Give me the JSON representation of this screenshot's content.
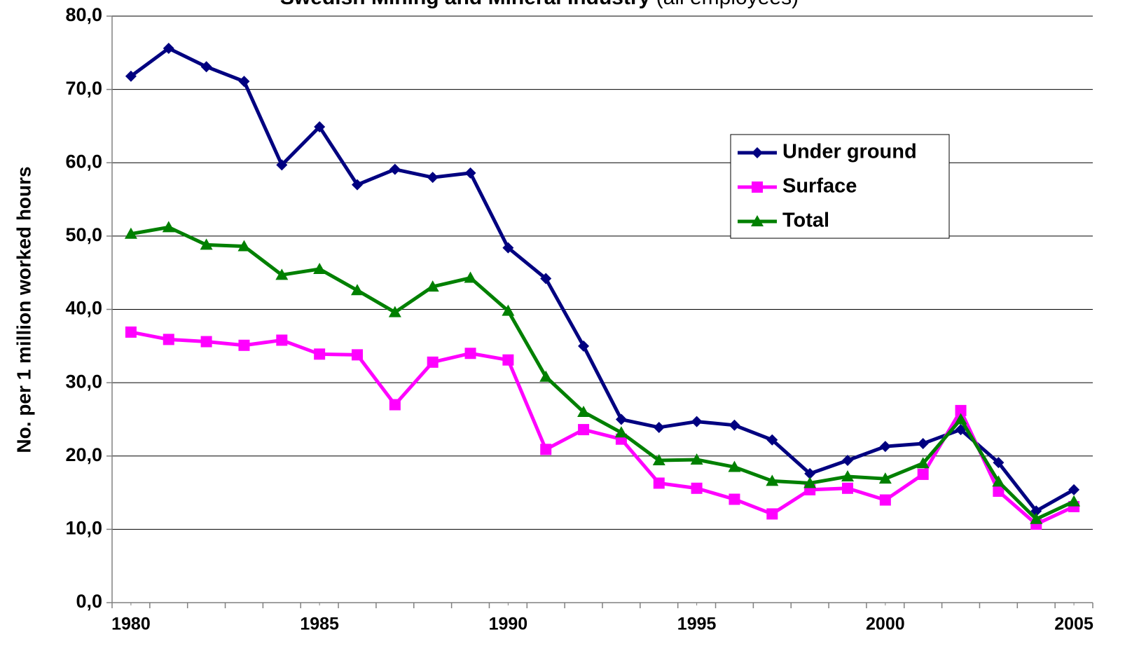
{
  "chart_data": {
    "type": "line",
    "title": "Swedish Mining and Mineral Industry",
    "subtitle": "(all employees)",
    "y_label": "No. per 1 million worked hours",
    "x": [
      1980,
      1981,
      1982,
      1983,
      1984,
      1985,
      1986,
      1987,
      1988,
      1989,
      1990,
      1991,
      1992,
      1993,
      1994,
      1995,
      1996,
      1997,
      1998,
      1999,
      2000,
      2001,
      2002,
      2003,
      2004,
      2005
    ],
    "series": [
      {
        "name": "Under ground",
        "color": "#000080",
        "marker": "diamond",
        "values": [
          71.8,
          75.6,
          73.1,
          71.1,
          59.7,
          64.9,
          57.0,
          59.1,
          58.0,
          58.6,
          48.4,
          44.2,
          35.0,
          25.0,
          23.9,
          24.7,
          24.2,
          22.2,
          17.6,
          19.4,
          21.3,
          21.7,
          23.6,
          19.1,
          12.5,
          15.4
        ]
      },
      {
        "name": "Surface",
        "color": "#ff00ff",
        "marker": "square",
        "values": [
          36.9,
          35.9,
          35.6,
          35.1,
          35.8,
          33.9,
          33.8,
          27.0,
          32.8,
          34.0,
          33.1,
          20.9,
          23.6,
          22.3,
          16.3,
          15.6,
          14.1,
          12.1,
          15.4,
          15.6,
          14.0,
          17.5,
          26.2,
          15.2,
          10.7,
          13.1
        ]
      },
      {
        "name": "Total",
        "color": "#008000",
        "marker": "triangle",
        "values": [
          50.3,
          51.2,
          48.8,
          48.6,
          44.7,
          45.5,
          42.6,
          39.6,
          43.1,
          44.3,
          39.8,
          30.8,
          26.0,
          23.2,
          19.4,
          19.5,
          18.5,
          16.6,
          16.3,
          17.2,
          16.9,
          19.0,
          25.0,
          16.5,
          11.4,
          13.8
        ]
      }
    ],
    "xlim": [
      1979.5,
      2005.5
    ],
    "xticks": [
      1980,
      1985,
      1990,
      1995,
      2000,
      2005
    ],
    "ylim": [
      0,
      80
    ],
    "yticks": [
      {
        "value": 0,
        "label": "0,0"
      },
      {
        "value": 10,
        "label": "10,0"
      },
      {
        "value": 20,
        "label": "20,0"
      },
      {
        "value": 30,
        "label": "30,0"
      },
      {
        "value": 40,
        "label": "40,0"
      },
      {
        "value": 50,
        "label": "50,0"
      },
      {
        "value": 60,
        "label": "60,0"
      },
      {
        "value": 70,
        "label": "70,0"
      },
      {
        "value": 80,
        "label": "80,0"
      }
    ],
    "grid": true,
    "legend": "upper right"
  }
}
